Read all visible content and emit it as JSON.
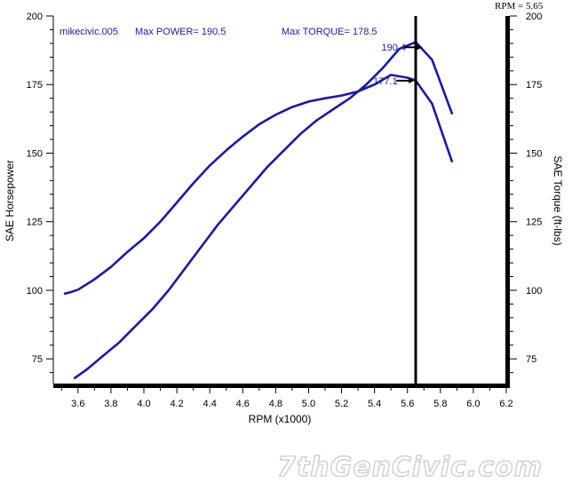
{
  "chart_data": {
    "type": "line",
    "xlabel": "RPM (x1000)",
    "ylabel_left": "SAE Horsepower",
    "ylabel_right": "SAE Torque (ft-lbs)",
    "xlim": [
      3.45,
      6.2
    ],
    "ylim": [
      66,
      200
    ],
    "x_ticks": [
      "3.6",
      "3.8",
      "4.0",
      "4.2",
      "4.4",
      "4.6",
      "4.8",
      "5.0",
      "5.2",
      "5.4",
      "5.6",
      "5.8",
      "6.0",
      "6.2"
    ],
    "y_ticks": [
      "75",
      "100",
      "125",
      "150",
      "175",
      "200"
    ],
    "y_ticks_right": [
      "75",
      "100",
      "125",
      "150",
      "175",
      "200"
    ],
    "grid": false,
    "cursor": {
      "rpm": 5.65,
      "readout": "RPM = 5.65"
    },
    "header": {
      "run": "mikecivic.005",
      "max_power": "Max POWER= 190.5",
      "max_torque": "Max TORQUE= 178.5"
    },
    "annotations": [
      {
        "text": "190.4",
        "x": 5.55,
        "y": 188.6
      },
      {
        "text": "177.1",
        "x": 5.5,
        "y": 176.4
      }
    ],
    "series": [
      {
        "id": "power",
        "color": "#1a1aa0",
        "x": [
          3.58,
          3.65,
          3.75,
          3.85,
          3.95,
          4.05,
          4.15,
          4.25,
          4.35,
          4.45,
          4.55,
          4.65,
          4.75,
          4.85,
          4.95,
          5.05,
          5.15,
          5.25,
          5.35,
          5.45,
          5.55,
          5.65,
          5.75,
          5.87
        ],
        "values": [
          68,
          71,
          76,
          81,
          87,
          93,
          100,
          108,
          116,
          124,
          131,
          138,
          145,
          151,
          157,
          162,
          166,
          170,
          175,
          181,
          188,
          190.5,
          184,
          164.5
        ]
      },
      {
        "id": "torque",
        "color": "#1a1aa0",
        "x": [
          3.52,
          3.55,
          3.6,
          3.7,
          3.8,
          3.9,
          4.0,
          4.1,
          4.2,
          4.3,
          4.4,
          4.5,
          4.6,
          4.7,
          4.8,
          4.9,
          5.0,
          5.1,
          5.2,
          5.3,
          5.4,
          5.5,
          5.6,
          5.65,
          5.75,
          5.87
        ],
        "values": [
          98.8,
          99.2,
          100.2,
          104,
          108.5,
          114,
          119,
          125,
          132,
          139,
          145.5,
          151,
          156,
          160.5,
          164,
          166.8,
          168.8,
          170,
          171,
          172.5,
          175,
          178.5,
          177.5,
          176.5,
          168,
          147
        ]
      }
    ]
  },
  "watermark": "7thGenCivic.com"
}
